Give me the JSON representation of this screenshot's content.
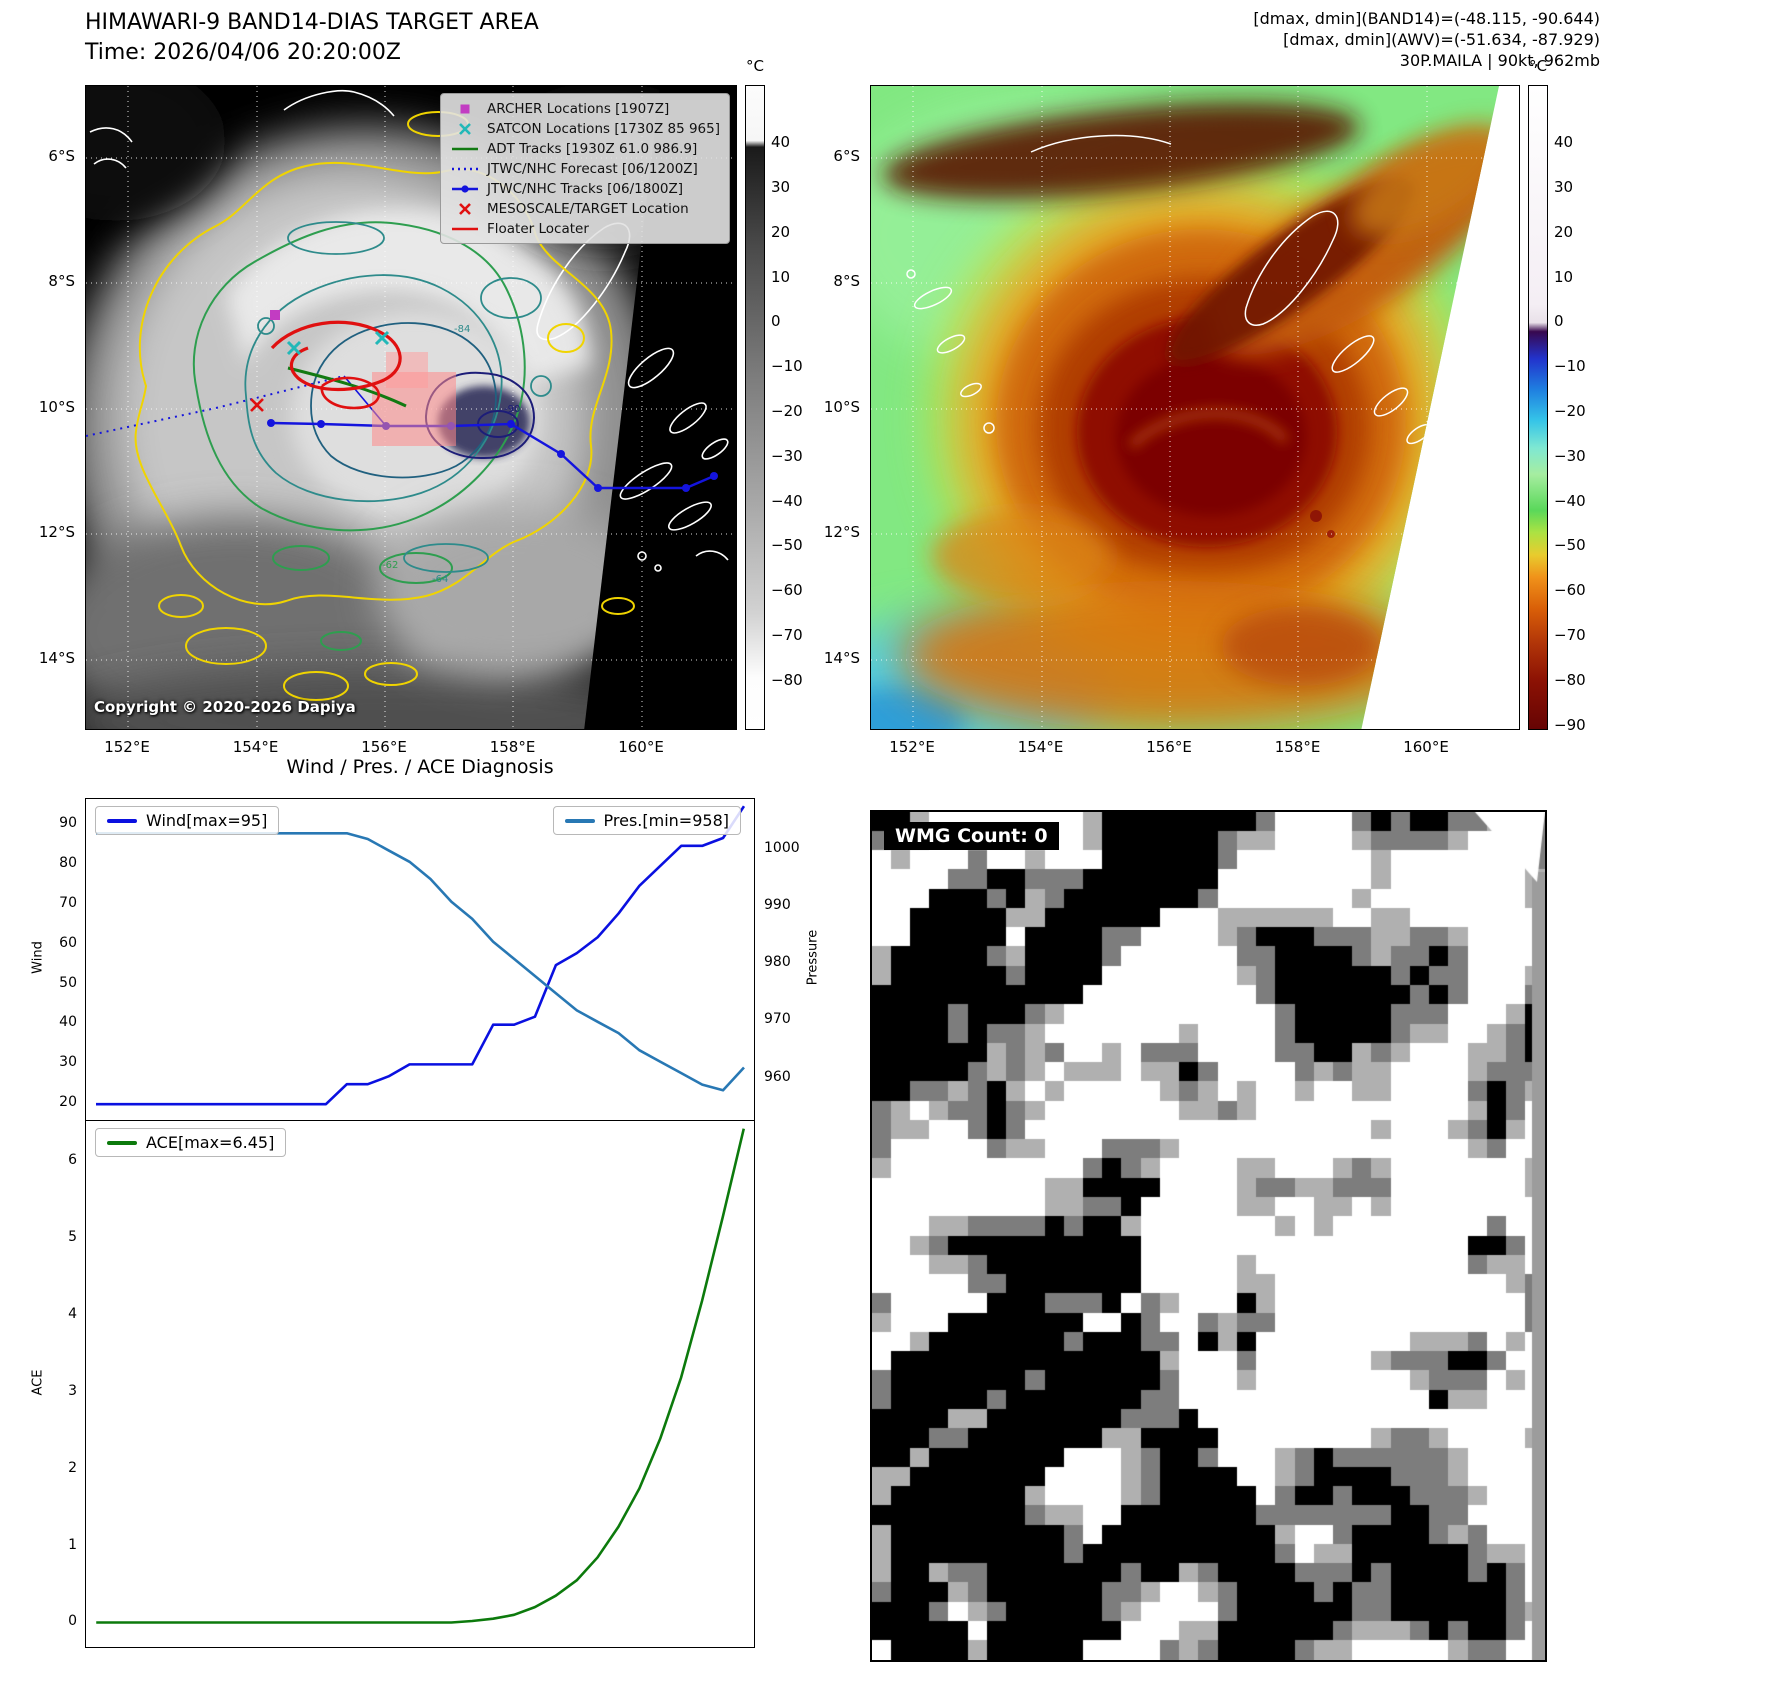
{
  "band14_panel": {
    "title": "HIMAWARI-9 BAND14-DIAS TARGET AREA",
    "subtitle": "Time: 2026/04/06 20:20:00Z",
    "copyright": "Copyright © 2020-2026 Dapiya",
    "x_ticks": [
      "152°E",
      "154°E",
      "156°E",
      "158°E",
      "160°E"
    ],
    "y_ticks": [
      "6°S",
      "8°S",
      "10°S",
      "12°S",
      "14°S"
    ],
    "colorbar": {
      "unit": "°C",
      "ticks": [
        "40",
        "30",
        "20",
        "10",
        "0",
        "−10",
        "−20",
        "−30",
        "−40",
        "−50",
        "−60",
        "−70",
        "−80"
      ]
    },
    "legend": [
      {
        "label": "ARCHER Locations [1907Z]",
        "marker": "square",
        "color": "#c23cc2"
      },
      {
        "label": "SATCON Locations [1730Z 85 965]",
        "marker": "x",
        "color": "#22b8b8"
      },
      {
        "label": "ADT Tracks [1930Z 61.0 986.9]",
        "marker": "line",
        "color": "#127a12"
      },
      {
        "label": "JTWC/NHC Forecast [06/1200Z]",
        "marker": "dotted",
        "color": "#1414dd"
      },
      {
        "label": "JTWC/NHC Tracks [06/1800Z]",
        "marker": "line-dot",
        "color": "#1414dd"
      },
      {
        "label": "MESOSCALE/TARGET Location",
        "marker": "x",
        "color": "#e01010"
      },
      {
        "label": "Floater Locater",
        "marker": "line",
        "color": "#e01010"
      }
    ],
    "contour_labels": [
      "-84",
      "-64",
      "-62",
      "-90"
    ]
  },
  "awv_panel": {
    "info_lines": [
      "[dmax, dmin](BAND14)=(-48.115, -90.644)",
      "[dmax, dmin](AWV)=(-51.634, -87.929)",
      "30P.MAILA | 90kt, 962mb"
    ],
    "x_ticks": [
      "152°E",
      "154°E",
      "156°E",
      "158°E",
      "160°E"
    ],
    "y_ticks": [
      "6°S",
      "8°S",
      "10°S",
      "12°S",
      "14°S"
    ],
    "colorbar": {
      "unit": "°C",
      "ticks": [
        "40",
        "30",
        "20",
        "10",
        "0",
        "−10",
        "−20",
        "−30",
        "−40",
        "−50",
        "−60",
        "−70",
        "−80",
        "−90"
      ]
    }
  },
  "wmg_panel": {
    "label": "WMG Count: 0"
  },
  "chart_data": [
    {
      "type": "line",
      "title": "Wind / Pres. / ACE Diagnosis",
      "series": [
        {
          "key": "wind",
          "name": "Wind[max=95]",
          "color": "#0a10e0",
          "axis": "left",
          "legend_anchor": "left",
          "values": [
            20,
            20,
            20,
            20,
            20,
            20,
            20,
            20,
            20,
            20,
            20,
            20,
            25,
            25,
            27,
            30,
            30,
            30,
            30,
            40,
            40,
            42,
            55,
            58,
            62,
            68,
            75,
            80,
            85,
            85,
            87,
            95
          ]
        },
        {
          "key": "pressure",
          "name": "Pres.[min=958]",
          "color": "#2878b4",
          "axis": "right",
          "legend_anchor": "right",
          "values": [
            1003,
            1003,
            1003,
            1003,
            1003,
            1003,
            1003,
            1003,
            1003,
            1003,
            1003,
            1003,
            1003,
            1002,
            1000,
            998,
            995,
            991,
            988,
            984,
            981,
            978,
            975,
            972,
            970,
            968,
            965,
            963,
            961,
            959,
            958,
            962
          ]
        }
      ],
      "left_axis": {
        "label": "Wind",
        "ticks": [
          20,
          30,
          40,
          50,
          60,
          70,
          80,
          90
        ],
        "ylim": [
          16,
          96.8
        ]
      },
      "right_axis": {
        "label": "Pressure",
        "ticks": [
          960,
          970,
          980,
          990,
          1000
        ],
        "ylim": [
          952.8,
          1009
        ]
      }
    },
    {
      "type": "line",
      "series": [
        {
          "key": "ace",
          "name": "ACE[max=6.45]",
          "color": "#0c7a0c",
          "axis": "left",
          "legend_anchor": "left",
          "values": [
            0,
            0,
            0,
            0,
            0,
            0,
            0,
            0,
            0,
            0,
            0,
            0,
            0,
            0,
            0,
            0,
            0,
            0,
            0.02,
            0.05,
            0.1,
            0.2,
            0.35,
            0.55,
            0.85,
            1.25,
            1.75,
            2.4,
            3.2,
            4.2,
            5.3,
            6.45
          ]
        }
      ],
      "left_axis": {
        "label": "ACE",
        "ticks": [
          0,
          1,
          2,
          3,
          4,
          5,
          6
        ],
        "ylim": [
          -0.32,
          6.55
        ]
      }
    }
  ]
}
